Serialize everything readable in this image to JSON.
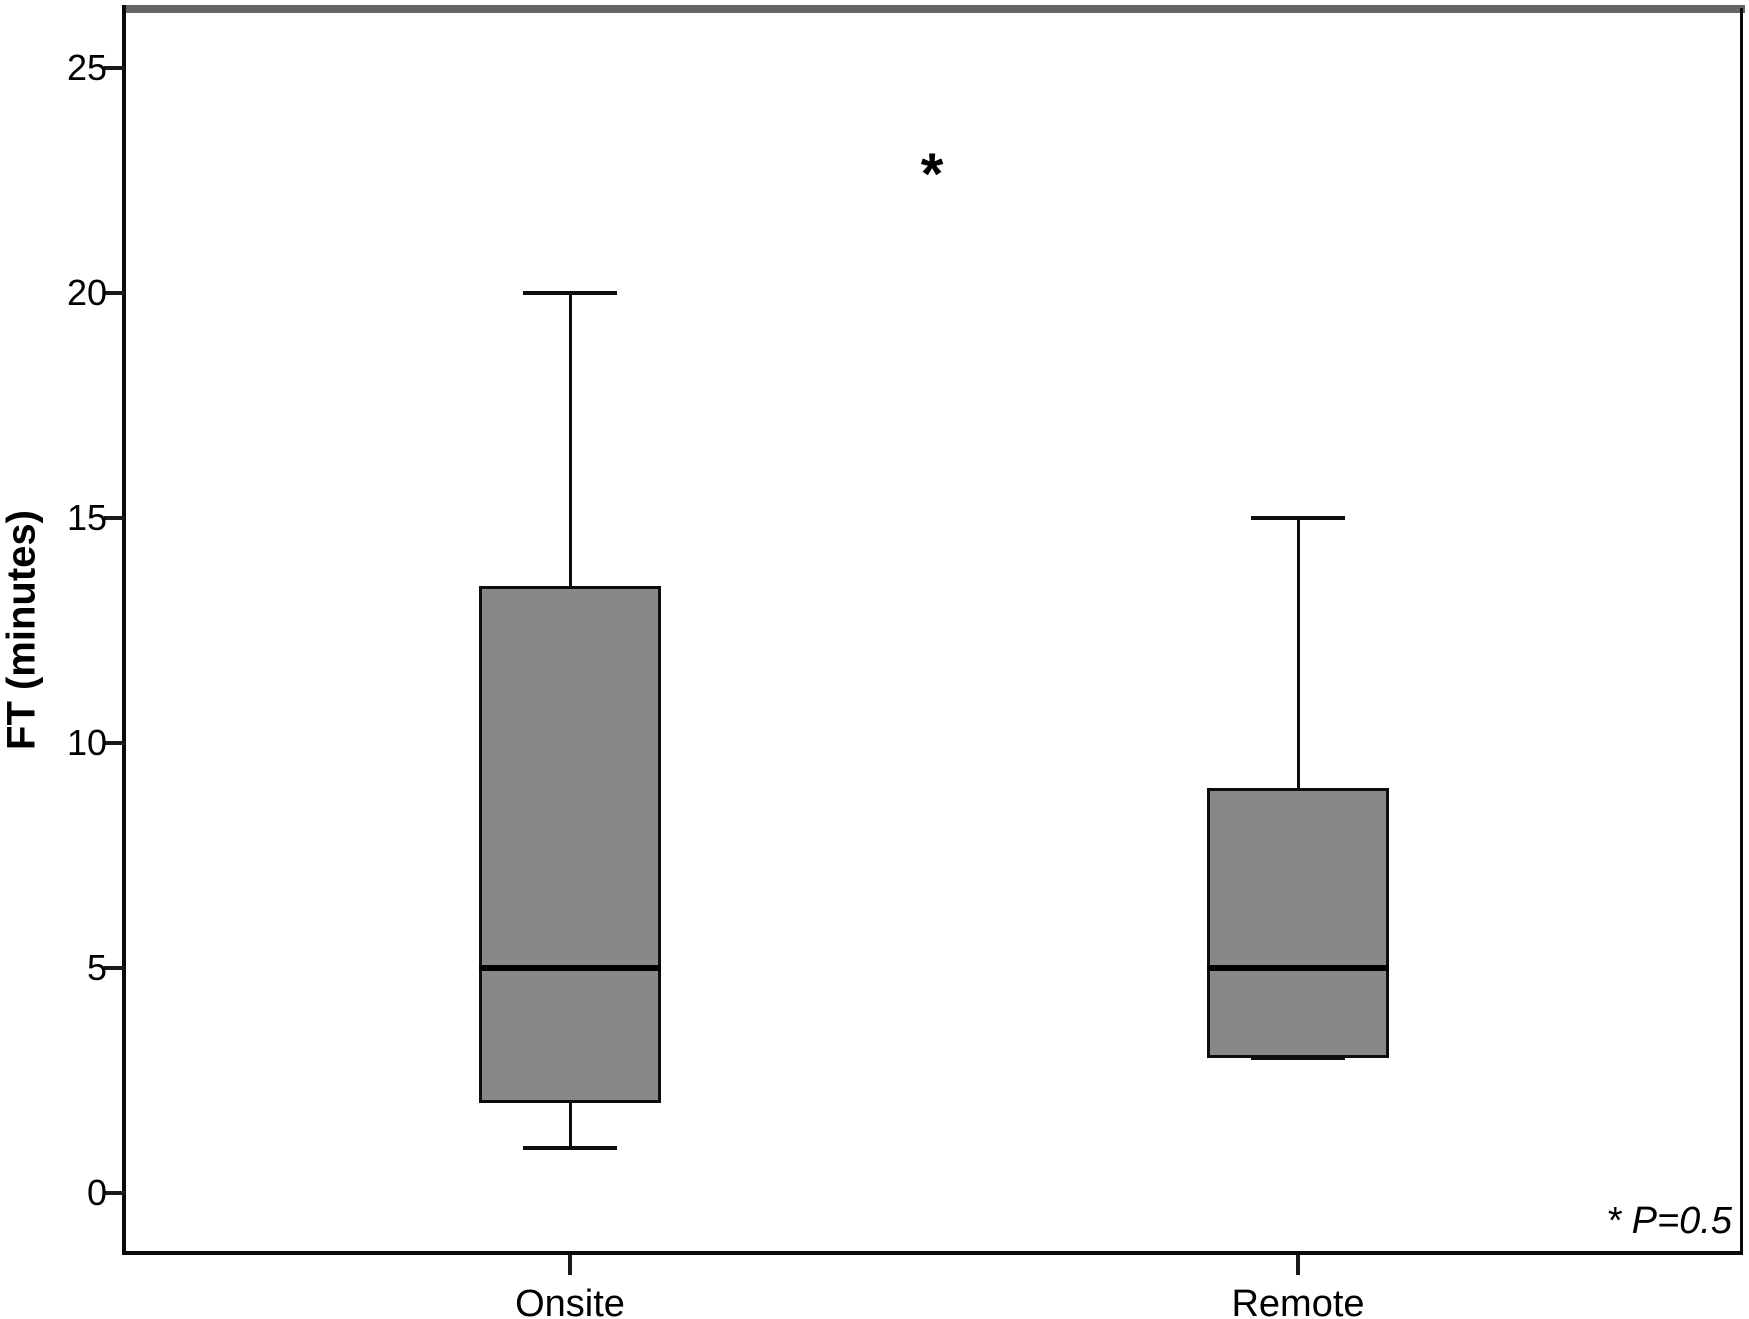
{
  "chart_data": {
    "type": "boxplot",
    "title": "",
    "xlabel": "",
    "ylabel": "FT (minutes)",
    "ylim": [
      -1.3,
      26.4
    ],
    "yticks": [
      0,
      5,
      10,
      15,
      20,
      25
    ],
    "grid": false,
    "legend": "none",
    "categories": [
      "Onsite",
      "Remote"
    ],
    "series": [
      {
        "name": "Onsite",
        "whisker_low": 1,
        "q1": 2,
        "median": 5,
        "q3": 13.5,
        "whisker_high": 20
      },
      {
        "name": "Remote",
        "whisker_low": 3,
        "q1": 3,
        "median": 5,
        "q3": 9,
        "whisker_high": 15
      }
    ],
    "outlier_marker": {
      "symbol": "*",
      "y": 22.8,
      "x_position": "centered between groups"
    },
    "annotation": "* P=0.5",
    "box_fill_color": "#888888",
    "line_color": "#000000",
    "frame_top_color": "#666666"
  }
}
